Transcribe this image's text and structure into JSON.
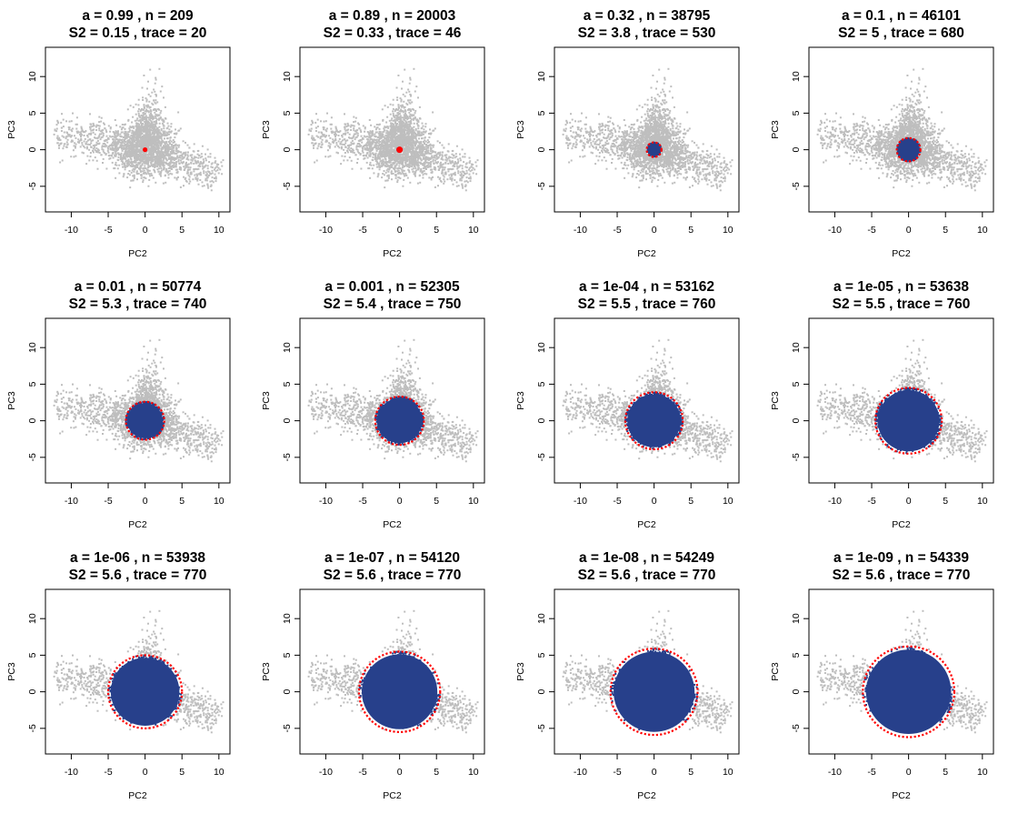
{
  "colors": {
    "background_points": "#bebebe",
    "selected_points": "#27408b",
    "ellipse": "#ff0000",
    "frame": "#000000"
  },
  "chart_data": [
    {
      "type": "scatter",
      "title_line1": "a = 0.99 , n =  209",
      "title_line2": "S2 = 0.15 , trace =  20",
      "xlabel": "PC2",
      "ylabel": "PC3",
      "xlim": [
        -13.5,
        11.5
      ],
      "ylim": [
        -8.5,
        14
      ],
      "xticks": [
        -10,
        -5,
        0,
        5,
        10
      ],
      "yticks": [
        -5,
        0,
        5,
        10
      ],
      "circle_center": [
        0,
        0
      ],
      "circle_radius": 0.15
    },
    {
      "type": "scatter",
      "title_line1": "a = 0.89 , n =  20003",
      "title_line2": "S2 = 0.33 , trace =  46",
      "xlabel": "PC2",
      "ylabel": "PC3",
      "xlim": [
        -13.5,
        11.5
      ],
      "ylim": [
        -8.5,
        14
      ],
      "xticks": [
        -10,
        -5,
        0,
        5,
        10
      ],
      "yticks": [
        -5,
        0,
        5,
        10
      ],
      "circle_center": [
        0,
        0
      ],
      "circle_radius": 0.3
    },
    {
      "type": "scatter",
      "title_line1": "a = 0.32 , n =  38795",
      "title_line2": "S2 = 3.8 , trace =  530",
      "xlabel": "PC2",
      "ylabel": "PC3",
      "xlim": [
        -13.5,
        11.5
      ],
      "ylim": [
        -8.5,
        14
      ],
      "xticks": [
        -10,
        -5,
        0,
        5,
        10
      ],
      "yticks": [
        -5,
        0,
        5,
        10
      ],
      "circle_center": [
        0,
        0
      ],
      "circle_radius": 1.0
    },
    {
      "type": "scatter",
      "title_line1": "a = 0.1 , n =  46101",
      "title_line2": "S2 = 5 , trace =  680",
      "xlabel": "PC2",
      "ylabel": "PC3",
      "xlim": [
        -13.5,
        11.5
      ],
      "ylim": [
        -8.5,
        14
      ],
      "xticks": [
        -10,
        -5,
        0,
        5,
        10
      ],
      "yticks": [
        -5,
        0,
        5,
        10
      ],
      "circle_center": [
        0,
        0
      ],
      "circle_radius": 1.6
    },
    {
      "type": "scatter",
      "title_line1": "a = 0.01 , n =  50774",
      "title_line2": "S2 = 5.3 , trace =  740",
      "xlabel": "PC2",
      "ylabel": "PC3",
      "xlim": [
        -13.5,
        11.5
      ],
      "ylim": [
        -8.5,
        14
      ],
      "xticks": [
        -10,
        -5,
        0,
        5,
        10
      ],
      "yticks": [
        -5,
        0,
        5,
        10
      ],
      "circle_center": [
        0,
        0
      ],
      "circle_radius": 2.6
    },
    {
      "type": "scatter",
      "title_line1": "a = 0.001 , n =  52305",
      "title_line2": "S2 = 5.4 , trace =  750",
      "xlabel": "PC2",
      "ylabel": "PC3",
      "xlim": [
        -13.5,
        11.5
      ],
      "ylim": [
        -8.5,
        14
      ],
      "xticks": [
        -10,
        -5,
        0,
        5,
        10
      ],
      "yticks": [
        -5,
        0,
        5,
        10
      ],
      "circle_center": [
        0,
        0
      ],
      "circle_radius": 3.3
    },
    {
      "type": "scatter",
      "title_line1": "a = 1e-04 , n =  53162",
      "title_line2": "S2 = 5.5 , trace =  760",
      "xlabel": "PC2",
      "ylabel": "PC3",
      "xlim": [
        -13.5,
        11.5
      ],
      "ylim": [
        -8.5,
        14
      ],
      "xticks": [
        -10,
        -5,
        0,
        5,
        10
      ],
      "yticks": [
        -5,
        0,
        5,
        10
      ],
      "circle_center": [
        0,
        0
      ],
      "circle_radius": 3.9
    },
    {
      "type": "scatter",
      "title_line1": "a = 1e-05 , n =  53638",
      "title_line2": "S2 = 5.5 , trace =  760",
      "xlabel": "PC2",
      "ylabel": "PC3",
      "xlim": [
        -13.5,
        11.5
      ],
      "ylim": [
        -8.5,
        14
      ],
      "xticks": [
        -10,
        -5,
        0,
        5,
        10
      ],
      "yticks": [
        -5,
        0,
        5,
        10
      ],
      "circle_center": [
        0,
        0
      ],
      "circle_radius": 4.5
    },
    {
      "type": "scatter",
      "title_line1": "a = 1e-06 , n =  53938",
      "title_line2": "S2 = 5.6 , trace =  770",
      "xlabel": "PC2",
      "ylabel": "PC3",
      "xlim": [
        -13.5,
        11.5
      ],
      "ylim": [
        -8.5,
        14
      ],
      "xticks": [
        -10,
        -5,
        0,
        5,
        10
      ],
      "yticks": [
        -5,
        0,
        5,
        10
      ],
      "circle_center": [
        0,
        0
      ],
      "circle_radius": 5.0
    },
    {
      "type": "scatter",
      "title_line1": "a = 1e-07 , n =  54120",
      "title_line2": "S2 = 5.6 , trace =  770",
      "xlabel": "PC2",
      "ylabel": "PC3",
      "xlim": [
        -13.5,
        11.5
      ],
      "ylim": [
        -8.5,
        14
      ],
      "xticks": [
        -10,
        -5,
        0,
        5,
        10
      ],
      "yticks": [
        -5,
        0,
        5,
        10
      ],
      "circle_center": [
        0,
        0
      ],
      "circle_radius": 5.5
    },
    {
      "type": "scatter",
      "title_line1": "a = 1e-08 , n =  54249",
      "title_line2": "S2 = 5.6 , trace =  770",
      "xlabel": "PC2",
      "ylabel": "PC3",
      "xlim": [
        -13.5,
        11.5
      ],
      "ylim": [
        -8.5,
        14
      ],
      "xticks": [
        -10,
        -5,
        0,
        5,
        10
      ],
      "yticks": [
        -5,
        0,
        5,
        10
      ],
      "circle_center": [
        0,
        0
      ],
      "circle_radius": 5.9
    },
    {
      "type": "scatter",
      "title_line1": "a = 1e-09 , n =  54339",
      "title_line2": "S2 = 5.6 , trace =  770",
      "xlabel": "PC2",
      "ylabel": "PC3",
      "xlim": [
        -13.5,
        11.5
      ],
      "ylim": [
        -8.5,
        14
      ],
      "xticks": [
        -10,
        -5,
        0,
        5,
        10
      ],
      "yticks": [
        -5,
        0,
        5,
        10
      ],
      "circle_center": [
        0,
        0
      ],
      "circle_radius": 6.2
    }
  ]
}
